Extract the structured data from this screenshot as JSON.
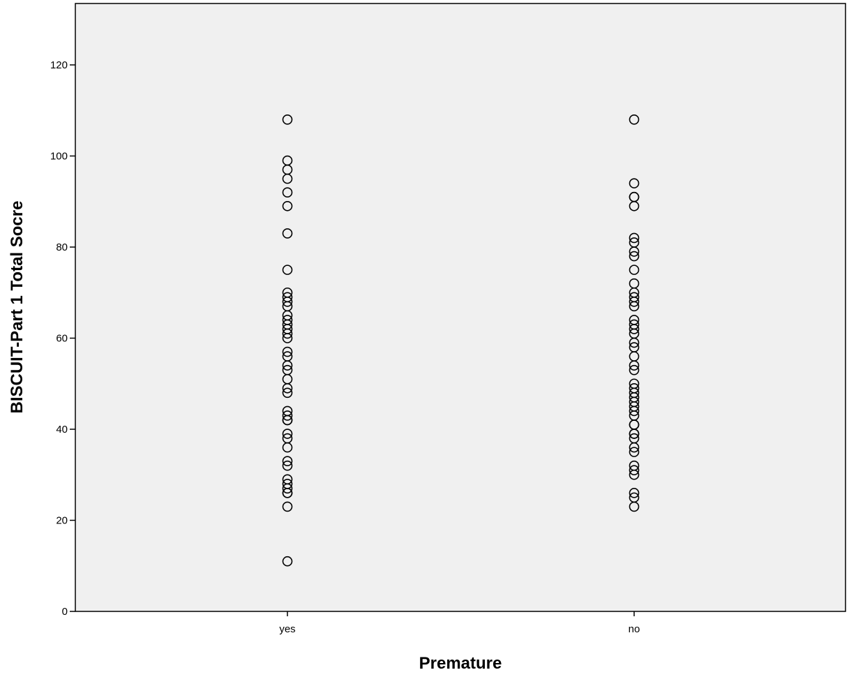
{
  "chart_data": {
    "type": "scatter",
    "title": "",
    "xlabel": "Premature",
    "ylabel": "BISCUIT-Part 1 Total Socre",
    "categories": [
      "yes",
      "no"
    ],
    "ylim": [
      0,
      120
    ],
    "yticks": [
      0,
      20,
      40,
      60,
      80,
      100,
      120
    ],
    "grid": false,
    "legend": "none",
    "colors": {
      "plot_background": "#f0f0f0",
      "marker_stroke": "#000000",
      "axis": "#000000"
    },
    "series": [
      {
        "category": "yes",
        "values": [
          108,
          99,
          97,
          95,
          92,
          89,
          83,
          75,
          70,
          69,
          68,
          67,
          65,
          64,
          63,
          62,
          61,
          60,
          57,
          56,
          54,
          53,
          51,
          49,
          48,
          44,
          43,
          42,
          42,
          39,
          38,
          36,
          33,
          32,
          29,
          28,
          27,
          26,
          26,
          23,
          11
        ]
      },
      {
        "category": "no",
        "values": [
          108,
          94,
          91,
          91,
          89,
          82,
          81,
          79,
          78,
          75,
          72,
          70,
          69,
          68,
          67,
          64,
          63,
          62,
          61,
          59,
          58,
          56,
          54,
          53,
          50,
          49,
          48,
          47,
          46,
          45,
          44,
          43,
          41,
          41,
          39,
          39,
          38,
          36,
          35,
          32,
          31,
          30,
          26,
          25,
          23
        ]
      }
    ]
  }
}
